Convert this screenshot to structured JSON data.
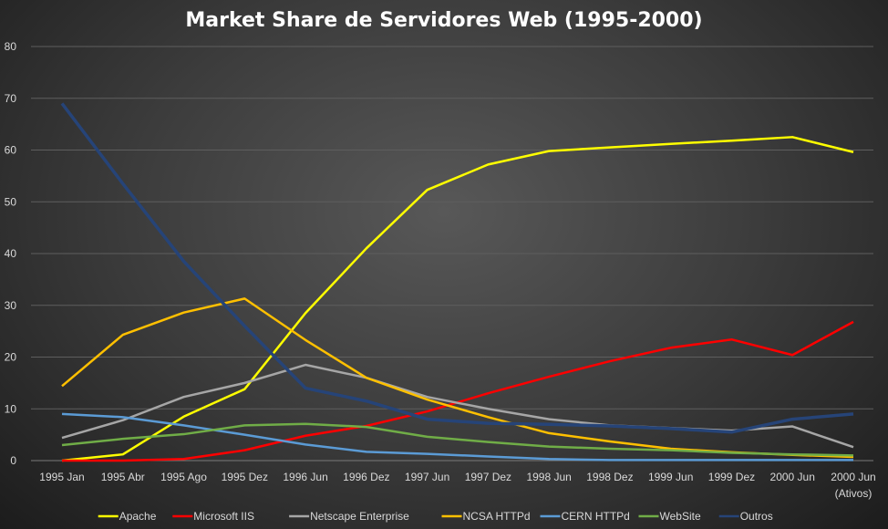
{
  "chart_data": {
    "type": "line",
    "title": "Market Share de Servidores Web (1995-2000)",
    "xlabel": "",
    "ylabel": "",
    "ylim": [
      0,
      80
    ],
    "yticks": [
      0,
      10,
      20,
      30,
      40,
      50,
      60,
      70,
      80
    ],
    "grid": true,
    "legend": "bottom",
    "categories": [
      "1995 Jan",
      "1995 Abr",
      "1995 Ago",
      "1995 Dez",
      "1996 Jun",
      "1996 Dez",
      "1997 Jun",
      "1997 Dez",
      "1998 Jun",
      "1998 Dez",
      "1999 Jun",
      "1999 Dez",
      "2000 Jun",
      "2000 Jun (Ativos)"
    ],
    "series": [
      {
        "name": "Apache",
        "color": "#ffff00",
        "values": [
          0,
          1.2,
          8.5,
          13.8,
          28.5,
          41,
          52.3,
          57.2,
          59.8,
          60.5,
          61.2,
          61.8,
          62.5,
          59.6
        ]
      },
      {
        "name": "Microsoft IIS",
        "color": "#ff0000",
        "values": [
          0,
          0,
          0.3,
          2,
          4.8,
          6.7,
          9.5,
          13,
          16.2,
          19.2,
          21.8,
          23.4,
          20.4,
          26.8
        ]
      },
      {
        "name": "Netscape Enterprise",
        "color": "#a6a6a6",
        "values": [
          4.4,
          7.8,
          12.3,
          15,
          18.5,
          16,
          12.3,
          10,
          8,
          6.8,
          6.3,
          5.8,
          6.6,
          2.6
        ]
      },
      {
        "name": "NCSA HTTPd",
        "color": "#ffc000",
        "values": [
          14.4,
          24.3,
          28.6,
          31.3,
          23.3,
          16,
          11.8,
          8.4,
          5.3,
          3.7,
          2.3,
          1.6,
          1.1,
          0.7
        ]
      },
      {
        "name": "CERN HTTPd",
        "color": "#5b9bd5",
        "values": [
          9,
          8.4,
          6.8,
          5,
          3.1,
          1.7,
          1.3,
          0.8,
          0.3,
          0.1,
          0.1,
          0.1,
          0.1,
          0.1
        ]
      },
      {
        "name": "WebSite",
        "color": "#70ad47",
        "values": [
          3,
          4.2,
          5.1,
          6.8,
          7.1,
          6.5,
          4.6,
          3.6,
          2.7,
          2.3,
          2,
          1.5,
          1.2,
          1
        ]
      },
      {
        "name": "Outros",
        "color": "#264478",
        "values": [
          69,
          53.5,
          38.5,
          26,
          14,
          11.5,
          8,
          7.2,
          7,
          6.7,
          6.2,
          5.5,
          8,
          9
        ]
      }
    ]
  }
}
